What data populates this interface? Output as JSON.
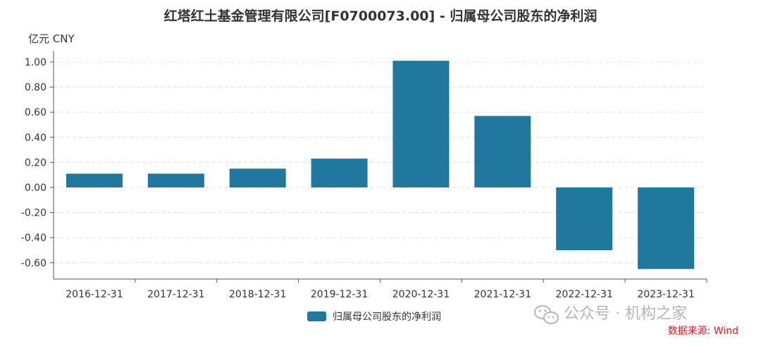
{
  "chart_data": {
    "type": "bar",
    "title": "红塔红土基金管理有限公司[F0700073.00] - 归属母公司股东的净利润",
    "unit_label": "亿元  CNY",
    "categories": [
      "2016-12-31",
      "2017-12-31",
      "2018-12-31",
      "2019-12-31",
      "2020-12-31",
      "2021-12-31",
      "2022-12-31",
      "2023-12-31"
    ],
    "series": [
      {
        "name": "归属母公司股东的净利润",
        "values": [
          0.11,
          0.11,
          0.15,
          0.23,
          1.01,
          0.57,
          -0.5,
          -0.65
        ]
      }
    ],
    "y_ticks": [
      "1.00",
      "0.80",
      "0.60",
      "0.40",
      "0.20",
      "0.00",
      "-0.20",
      "-0.40",
      "-0.60"
    ],
    "y_tick_values": [
      1.0,
      0.8,
      0.6,
      0.4,
      0.2,
      0.0,
      -0.2,
      -0.4,
      -0.6
    ],
    "ylim": [
      -0.7,
      1.1
    ],
    "grid": true,
    "legend_position": "bottom-center",
    "bar_color": "#21789f"
  },
  "watermark": {
    "text": "公众号 · 机构之家",
    "icon": "wechat-icon"
  },
  "source_text": "数据来源: Wind"
}
